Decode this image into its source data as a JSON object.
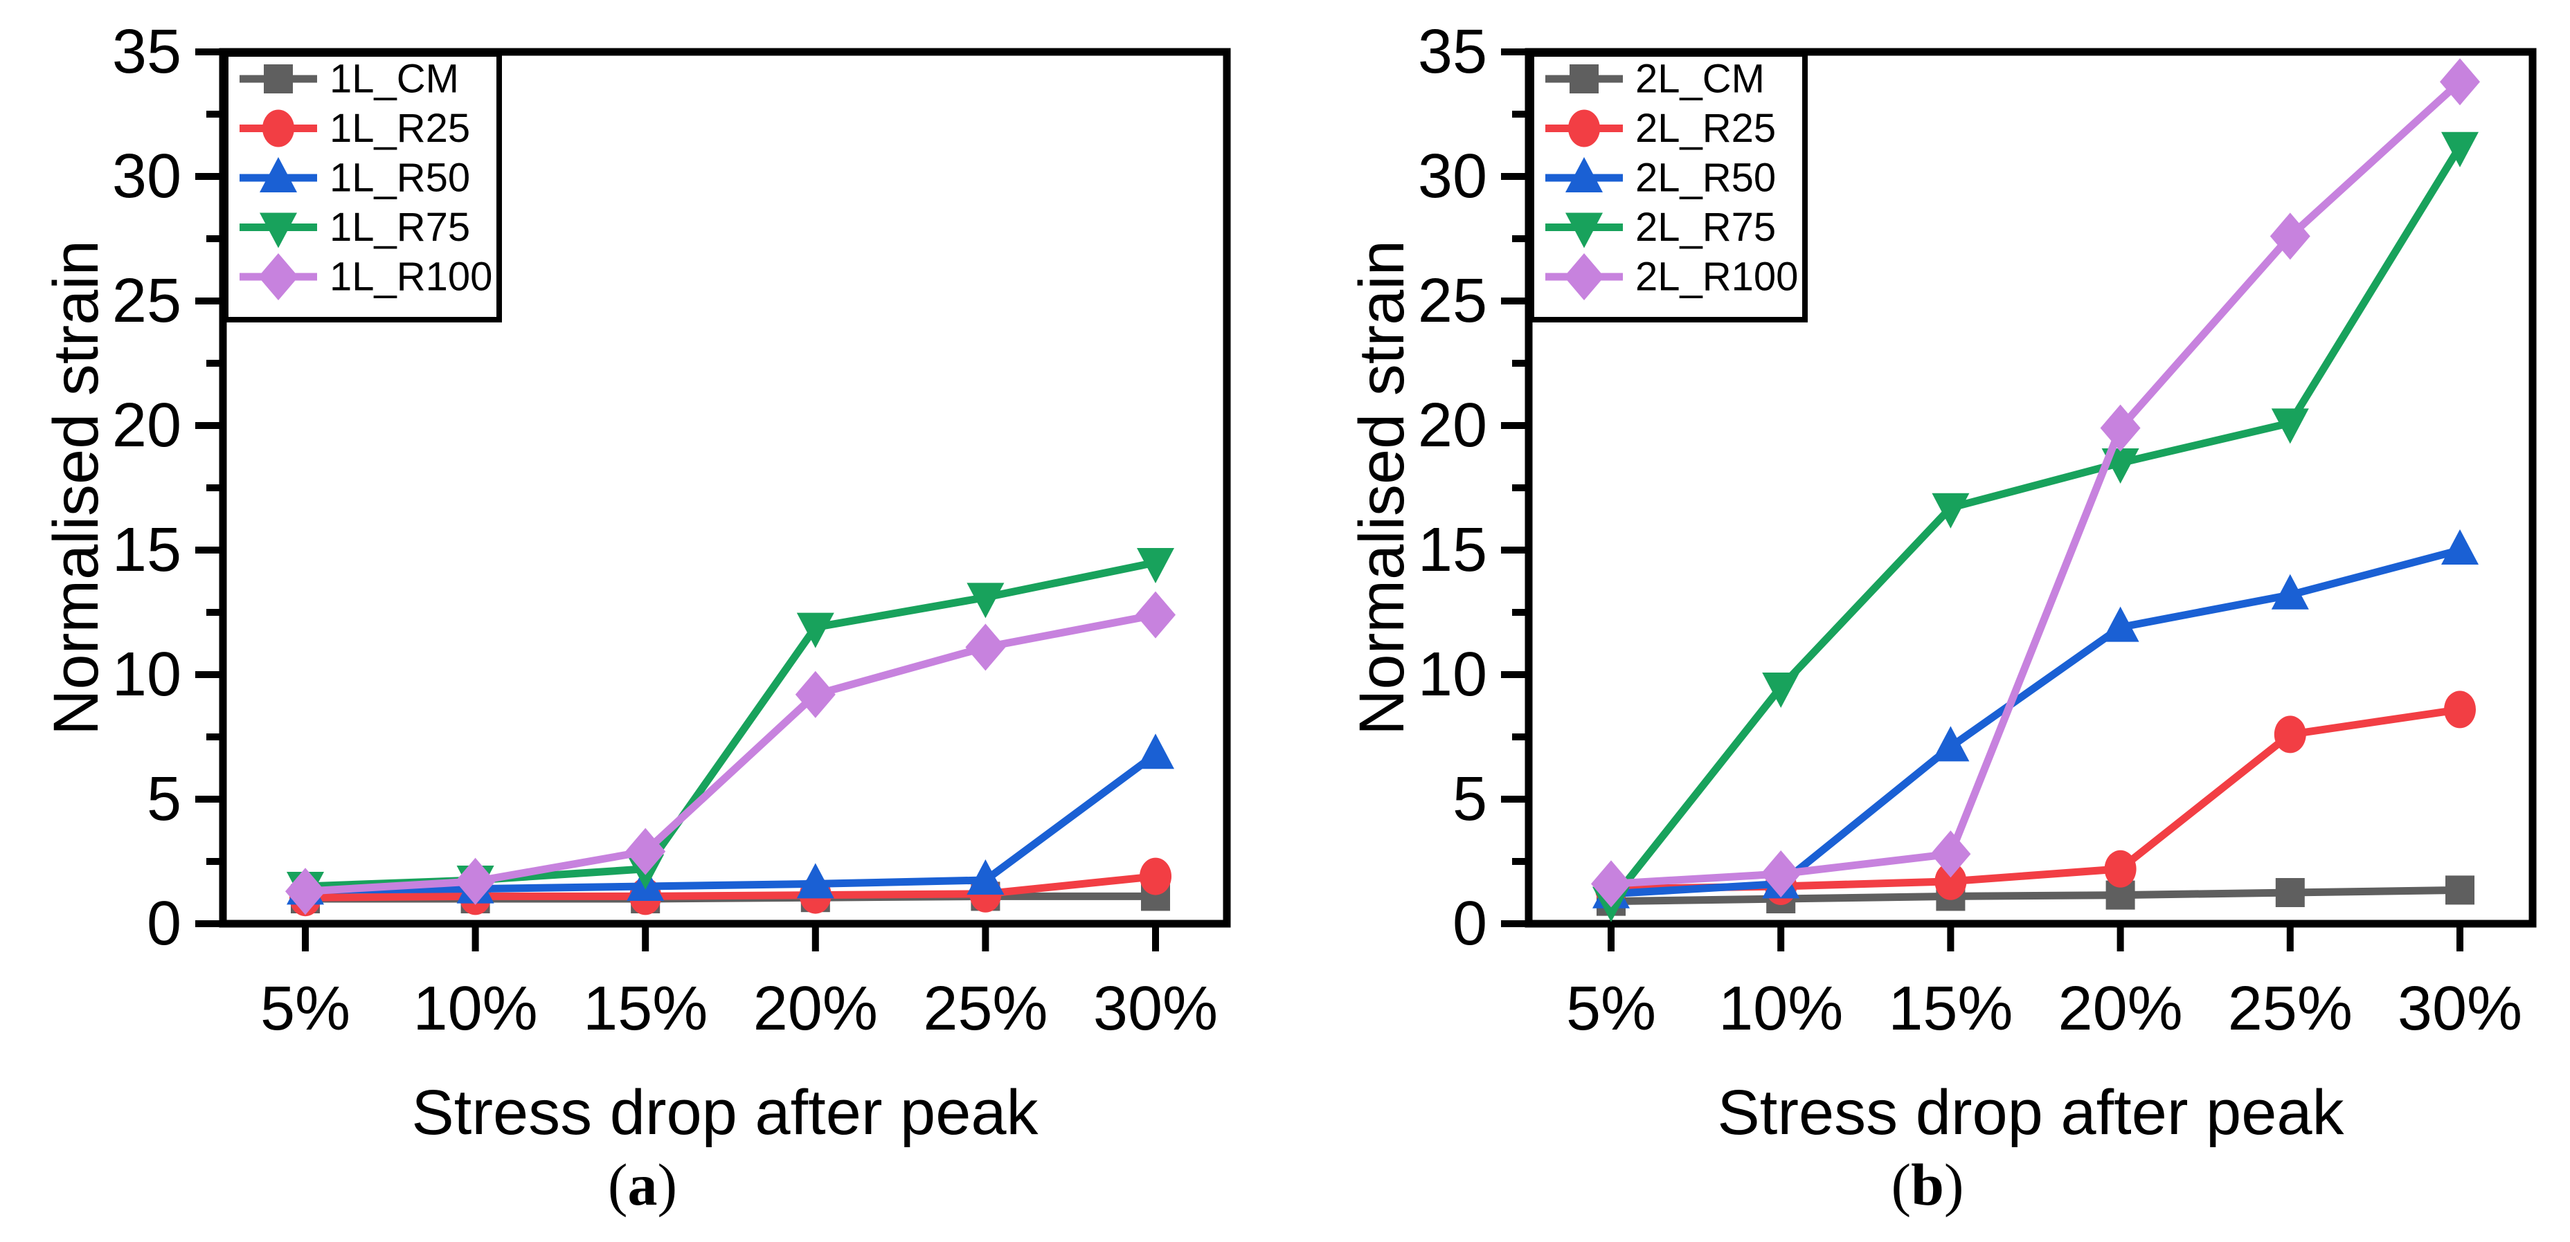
{
  "figure": {
    "background": "#ffffff",
    "text_color": "#000000",
    "paren_open": "(",
    "paren_close": ")",
    "panels": [
      {
        "caption_letter": "a",
        "legend_items": [
          "1L_CM",
          "1L_R25",
          "1L_R50",
          "1L_R75",
          "1L_R100"
        ]
      },
      {
        "caption_letter": "b",
        "legend_items": [
          "2L_CM",
          "2L_R25",
          "2L_R50",
          "2L_R75",
          "2L_R100"
        ]
      }
    ]
  },
  "chart_data": [
    {
      "type": "line",
      "title": "",
      "caption_letter": "a",
      "xlabel": "Stress drop after peak",
      "ylabel": "Normalised strain",
      "categories": [
        "5%",
        "10%",
        "15%",
        "20%",
        "25%",
        "30%"
      ],
      "ylim": [
        0,
        35
      ],
      "y_major_tick": 5,
      "y_minor_tick": 2.5,
      "y_tick_labels": [
        "0",
        "5",
        "10",
        "15",
        "20",
        "25",
        "30",
        "35"
      ],
      "grid": false,
      "legend_position": "top-left",
      "series": [
        {
          "name": "1L_CM",
          "color": "#5f5f5f",
          "marker": "square",
          "values": [
            1.0,
            1.0,
            1.0,
            1.05,
            1.1,
            1.1
          ]
        },
        {
          "name": "1L_R25",
          "color": "#f23e44",
          "marker": "circle",
          "values": [
            1.05,
            1.1,
            1.1,
            1.15,
            1.2,
            1.9
          ]
        },
        {
          "name": "1L_R50",
          "color": "#1a60d4",
          "marker": "triangle-up",
          "values": [
            1.35,
            1.4,
            1.5,
            1.6,
            1.75,
            6.8
          ]
        },
        {
          "name": "1L_R75",
          "color": "#18a25c",
          "marker": "triangle-down",
          "values": [
            1.5,
            1.75,
            2.2,
            11.9,
            13.1,
            14.5
          ]
        },
        {
          "name": "1L_R100",
          "color": "#c782de",
          "marker": "diamond",
          "values": [
            1.3,
            1.7,
            2.9,
            9.2,
            11.1,
            12.4
          ]
        }
      ]
    },
    {
      "type": "line",
      "title": "",
      "caption_letter": "b",
      "xlabel": "Stress drop after peak",
      "ylabel": "Normalised strain",
      "categories": [
        "5%",
        "10%",
        "15%",
        "20%",
        "25%",
        "30%"
      ],
      "ylim": [
        0,
        35
      ],
      "y_major_tick": 5,
      "y_minor_tick": 2.5,
      "y_tick_labels": [
        "0",
        "5",
        "10",
        "15",
        "20",
        "25",
        "30",
        "35"
      ],
      "grid": false,
      "legend_position": "top-left",
      "series": [
        {
          "name": "2L_CM",
          "color": "#5f5f5f",
          "marker": "square",
          "values": [
            0.9,
            1.0,
            1.1,
            1.15,
            1.25,
            1.35
          ]
        },
        {
          "name": "2L_R25",
          "color": "#f23e44",
          "marker": "circle",
          "values": [
            1.4,
            1.5,
            1.7,
            2.2,
            7.6,
            8.6
          ]
        },
        {
          "name": "2L_R50",
          "color": "#1a60d4",
          "marker": "triangle-up",
          "values": [
            1.2,
            1.6,
            7.1,
            11.9,
            13.2,
            15.0
          ]
        },
        {
          "name": "2L_R75",
          "color": "#18a25c",
          "marker": "triangle-down",
          "values": [
            0.9,
            9.5,
            16.7,
            18.5,
            20.1,
            31.2
          ]
        },
        {
          "name": "2L_R100",
          "color": "#c782de",
          "marker": "diamond",
          "values": [
            1.6,
            2.0,
            2.8,
            19.9,
            27.6,
            33.8
          ]
        }
      ]
    }
  ]
}
